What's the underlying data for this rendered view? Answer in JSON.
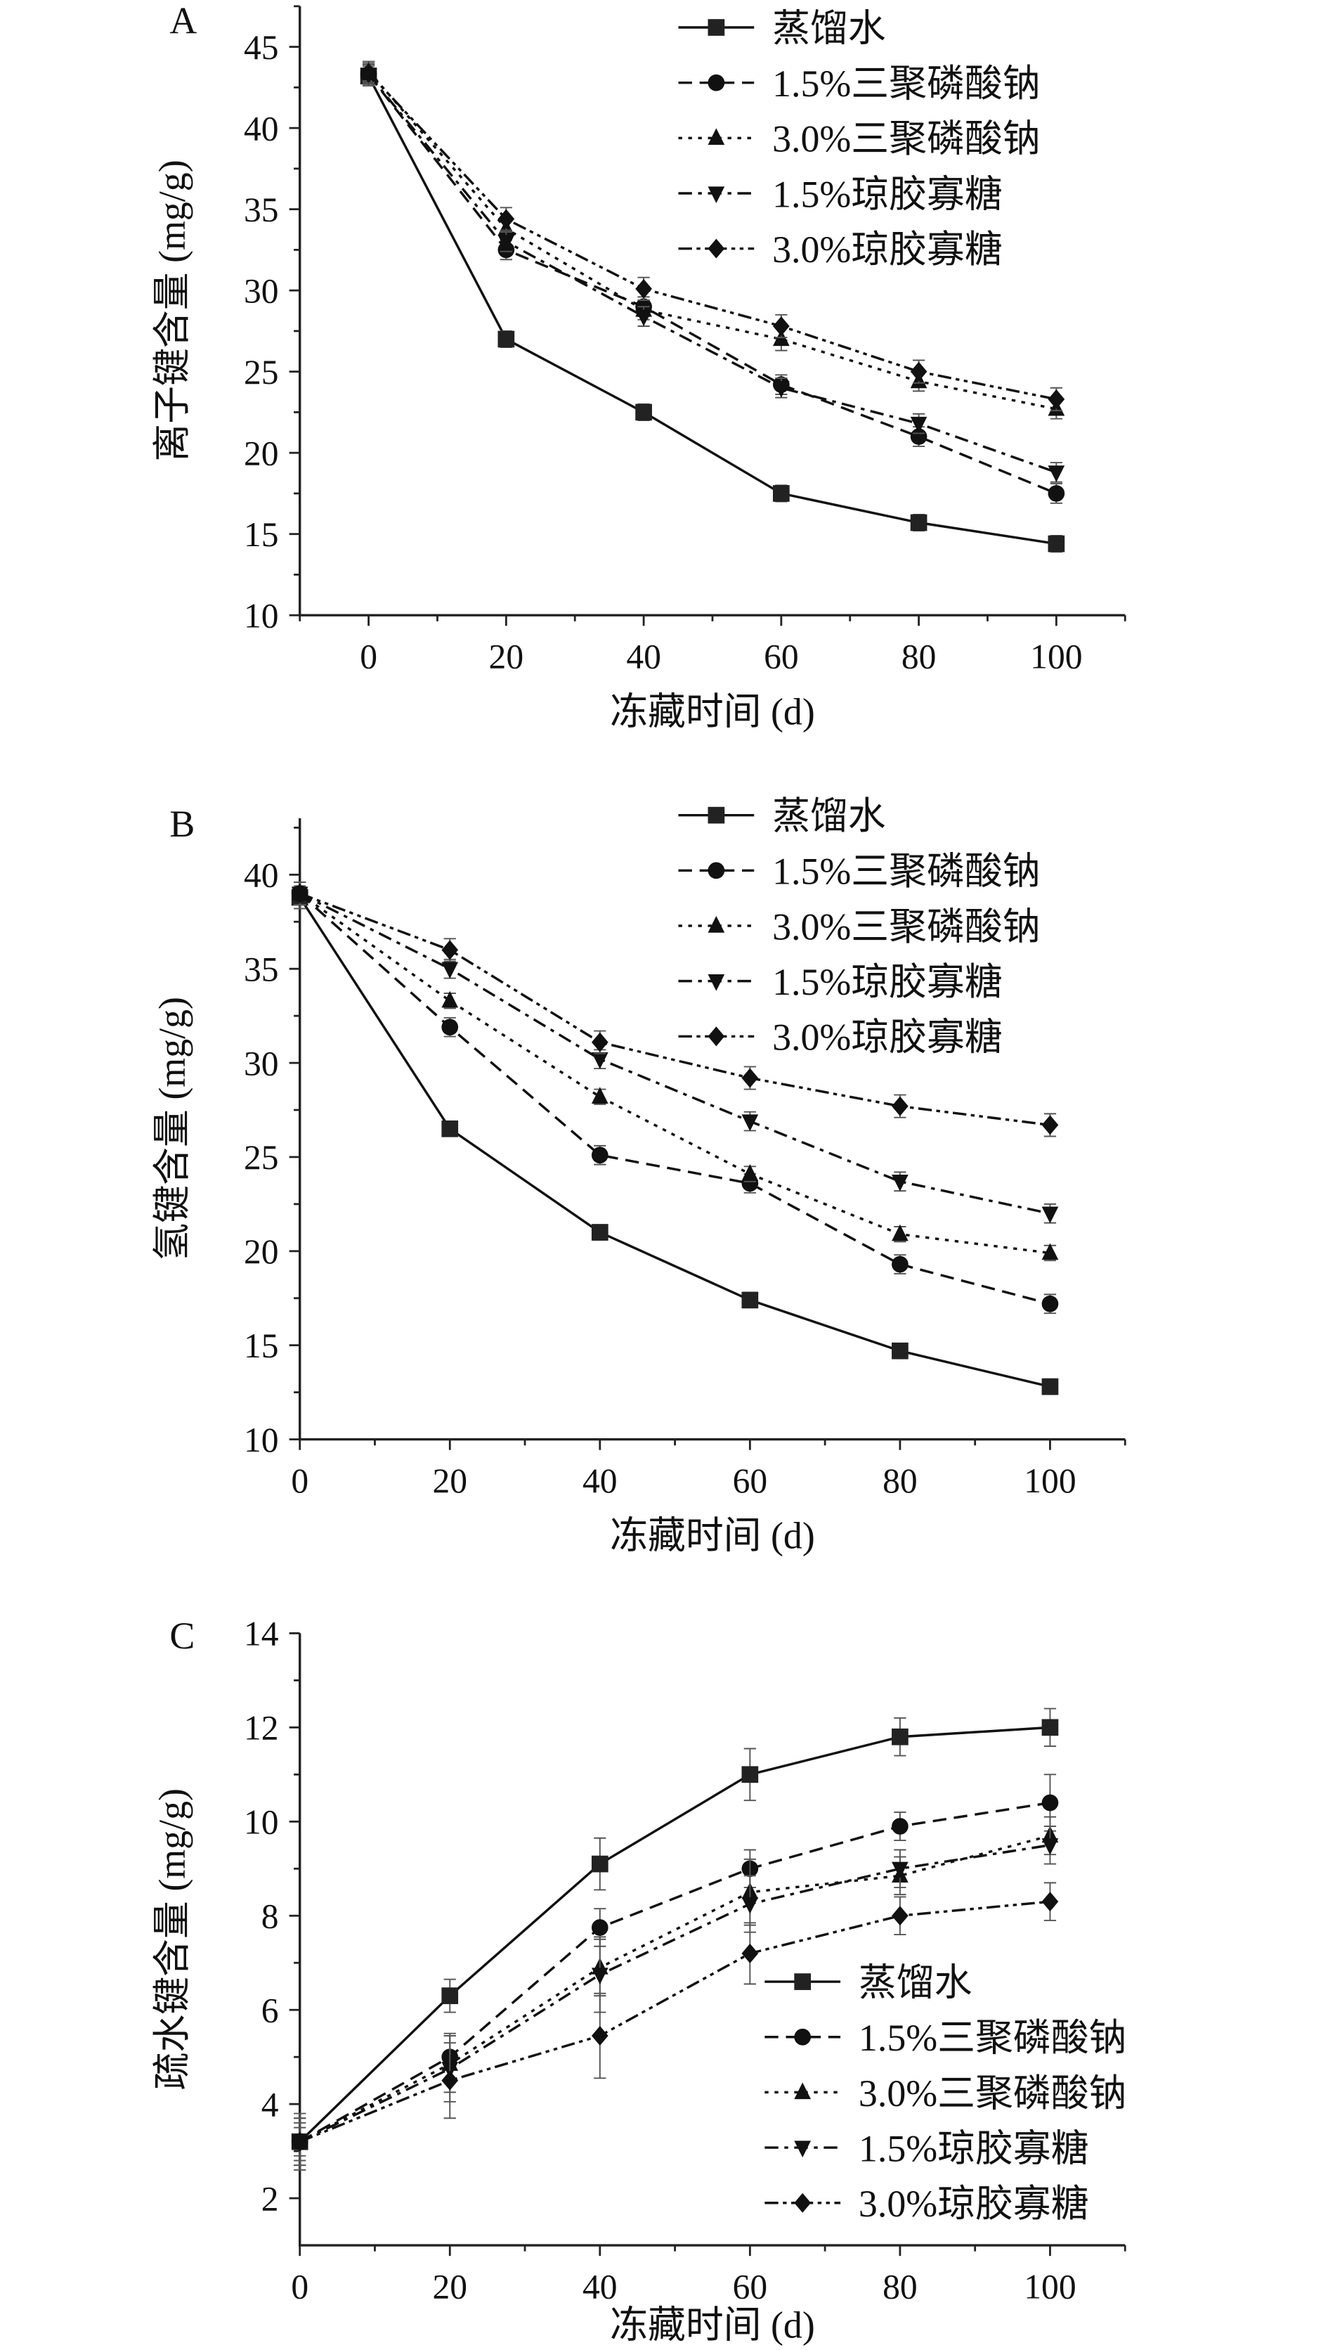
{
  "chart_data": [
    {
      "type": "line",
      "panel_label": "A",
      "xlabel": "冻藏时间 (d)",
      "ylabel": "离子键含量 (mg/g)",
      "xlim": [
        -10,
        110
      ],
      "ylim": [
        10,
        47.5
      ],
      "xticks": [
        0,
        20,
        40,
        60,
        80,
        100
      ],
      "yticks": [
        10,
        15,
        20,
        25,
        30,
        35,
        40,
        45
      ],
      "legend_position": "top-right",
      "x": [
        0,
        20,
        40,
        60,
        80,
        100
      ],
      "series": [
        {
          "name": "蒸馏水",
          "marker": "square",
          "line": "solid",
          "values": [
            43.2,
            27.0,
            22.5,
            17.5,
            15.7,
            14.4
          ],
          "errors": [
            0.6,
            0.5,
            0.5,
            0.5,
            0.5,
            0.5
          ]
        },
        {
          "name": "1.5%三聚磷酸钠",
          "marker": "circle",
          "line": "dash",
          "values": [
            43.3,
            32.5,
            29.0,
            24.2,
            21.0,
            17.5
          ],
          "errors": [
            0.6,
            0.6,
            0.6,
            0.6,
            0.6,
            0.6
          ]
        },
        {
          "name": "3.0%三聚磷酸钠",
          "marker": "triangle-up",
          "line": "dot",
          "values": [
            43.5,
            33.8,
            28.8,
            27.0,
            24.4,
            22.7
          ],
          "errors": [
            0.6,
            0.6,
            0.6,
            0.7,
            0.6,
            0.6
          ]
        },
        {
          "name": "1.5%琼胶寡糖",
          "marker": "triangle-down",
          "line": "dashdot",
          "values": [
            43.3,
            33.0,
            28.4,
            24.0,
            21.8,
            18.8
          ],
          "errors": [
            0.6,
            0.6,
            0.6,
            0.6,
            0.6,
            0.6
          ]
        },
        {
          "name": "3.0%琼胶寡糖",
          "marker": "diamond",
          "line": "dashdotdot",
          "values": [
            43.4,
            34.4,
            30.1,
            27.8,
            25.0,
            23.3
          ],
          "errors": [
            0.6,
            0.7,
            0.7,
            0.7,
            0.7,
            0.7
          ]
        }
      ]
    },
    {
      "type": "line",
      "panel_label": "B",
      "xlabel": "冻藏时间 (d)",
      "ylabel": "氢键含量 (mg/g)",
      "xlim": [
        0,
        110
      ],
      "ylim": [
        10,
        43
      ],
      "xticks": [
        0,
        20,
        40,
        60,
        80,
        100
      ],
      "yticks": [
        10,
        15,
        20,
        25,
        30,
        35,
        40
      ],
      "legend_position": "top-right",
      "x": [
        0,
        20,
        40,
        60,
        80,
        100
      ],
      "series": [
        {
          "name": "蒸馏水",
          "marker": "square",
          "line": "solid",
          "values": [
            38.8,
            26.5,
            21.0,
            17.4,
            14.7,
            12.8
          ],
          "errors": [
            0.6,
            0.4,
            0.4,
            0.4,
            0.4,
            0.4
          ]
        },
        {
          "name": "1.5%三聚磷酸钠",
          "marker": "circle",
          "line": "dash",
          "values": [
            39.0,
            31.9,
            25.1,
            23.6,
            19.3,
            17.2
          ],
          "errors": [
            0.6,
            0.5,
            0.5,
            0.5,
            0.5,
            0.5
          ]
        },
        {
          "name": "3.0%三聚磷酸钠",
          "marker": "triangle-up",
          "line": "dot",
          "values": [
            39.0,
            33.3,
            28.2,
            24.1,
            20.9,
            19.9
          ],
          "errors": [
            0.6,
            0.4,
            0.4,
            0.4,
            0.4,
            0.4
          ]
        },
        {
          "name": "1.5%琼胶寡糖",
          "marker": "triangle-down",
          "line": "dashdot",
          "values": [
            39.0,
            35.0,
            30.2,
            26.9,
            23.7,
            22.0
          ],
          "errors": [
            0.6,
            0.5,
            0.5,
            0.5,
            0.5,
            0.5
          ]
        },
        {
          "name": "3.0%琼胶寡糖",
          "marker": "diamond",
          "line": "dashdotdot",
          "values": [
            39.0,
            36.0,
            31.1,
            29.2,
            27.7,
            26.7
          ],
          "errors": [
            0.6,
            0.6,
            0.6,
            0.6,
            0.6,
            0.6
          ]
        }
      ]
    },
    {
      "type": "line",
      "panel_label": "C",
      "xlabel": "冻藏时间 (d)",
      "ylabel": "疏水键含量 (mg/g)",
      "xlim": [
        0,
        110
      ],
      "ylim": [
        1,
        14
      ],
      "xticks": [
        0,
        20,
        40,
        60,
        80,
        100
      ],
      "yticks": [
        2,
        4,
        6,
        8,
        10,
        12,
        14
      ],
      "legend_position": "center-right",
      "x": [
        0,
        20,
        40,
        60,
        80,
        100
      ],
      "series": [
        {
          "name": "蒸馏水",
          "marker": "square",
          "line": "solid",
          "values": [
            3.2,
            6.3,
            9.1,
            11.0,
            11.8,
            12.0
          ],
          "errors": [
            0.3,
            0.35,
            0.55,
            0.55,
            0.4,
            0.4
          ]
        },
        {
          "name": "1.5%三聚磷酸钠",
          "marker": "circle",
          "line": "dash",
          "values": [
            3.2,
            5.0,
            7.75,
            9.0,
            9.9,
            10.4
          ],
          "errors": [
            0.6,
            0.5,
            0.4,
            0.4,
            0.3,
            0.6
          ]
        },
        {
          "name": "3.0%三聚磷酸钠",
          "marker": "triangle-up",
          "line": "dot",
          "values": [
            3.2,
            4.85,
            6.9,
            8.5,
            8.85,
            9.7
          ],
          "errors": [
            0.5,
            0.6,
            0.6,
            0.7,
            0.4,
            0.4
          ]
        },
        {
          "name": "1.5%琼胶寡糖",
          "marker": "triangle-down",
          "line": "dashdot",
          "values": [
            3.2,
            4.75,
            6.75,
            8.25,
            9.0,
            9.5
          ],
          "errors": [
            0.5,
            0.7,
            0.8,
            0.6,
            0.4,
            0.4
          ]
        },
        {
          "name": "3.0%琼胶寡糖",
          "marker": "diamond",
          "line": "dashdotdot",
          "values": [
            3.2,
            4.5,
            5.45,
            7.2,
            8.0,
            8.3
          ],
          "errors": [
            0.4,
            0.8,
            0.9,
            0.65,
            0.4,
            0.4
          ]
        }
      ]
    }
  ]
}
